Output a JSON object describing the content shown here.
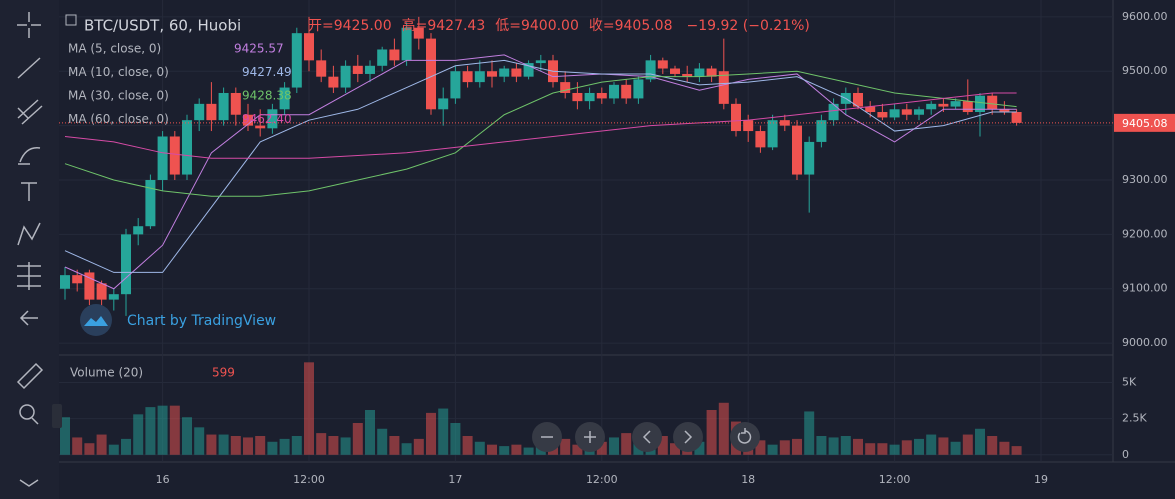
{
  "chart_data": {
    "type": "candlestick",
    "title": "BTC/USDT, 60, Huobi",
    "ohlc_labels": [
      "开=9425.00",
      "高=9427.43",
      "低=9400.00",
      "收=9405.08"
    ],
    "change": "−19.92 (−0.21%)",
    "watermark": "Chart by TradingView",
    "up_color": "#26a69a",
    "down_color": "#ef5350",
    "open": [
      9100,
      9125,
      9130,
      9110,
      9080,
      9090,
      9200,
      9215,
      9300,
      9380,
      9310,
      9410,
      9440,
      9410,
      9460,
      9420,
      9400,
      9395,
      9430,
      9470,
      9570,
      9520,
      9490,
      9470,
      9510,
      9495,
      9510,
      9540,
      9520,
      9580,
      9560,
      9430,
      9450,
      9500,
      9480,
      9500,
      9490,
      9505,
      9490,
      9515,
      9520,
      9480,
      9460,
      9445,
      9460,
      9450,
      9475,
      9450,
      9485,
      9520,
      9505,
      9495,
      9490,
      9505,
      9500,
      9440,
      9410,
      9390,
      9360,
      9410,
      9400,
      9310,
      9370,
      9410,
      9440,
      9460,
      9435,
      9425,
      9415,
      9430,
      9420,
      9430,
      9440,
      9435,
      9445,
      9425,
      9455,
      9430,
      9425
    ],
    "high": [
      9140,
      9135,
      9135,
      9115,
      9100,
      9210,
      9230,
      9310,
      9390,
      9390,
      9420,
      9450,
      9480,
      9470,
      9470,
      9440,
      9430,
      9440,
      9480,
      9580,
      9600,
      9540,
      9510,
      9520,
      9530,
      9520,
      9545,
      9560,
      9590,
      9600,
      9570,
      9470,
      9510,
      9510,
      9520,
      9520,
      9510,
      9515,
      9520,
      9530,
      9530,
      9500,
      9480,
      9470,
      9470,
      9480,
      9485,
      9490,
      9530,
      9525,
      9510,
      9510,
      9515,
      9510,
      9560,
      9450,
      9420,
      9400,
      9420,
      9420,
      9410,
      9380,
      9420,
      9450,
      9470,
      9470,
      9445,
      9440,
      9440,
      9440,
      9435,
      9445,
      9450,
      9450,
      9485,
      9460,
      9460,
      9445,
      9430
    ],
    "low": [
      9080,
      9095,
      9070,
      9065,
      9060,
      9050,
      9180,
      9210,
      9280,
      9300,
      9300,
      9390,
      9390,
      9400,
      9400,
      9390,
      9380,
      9385,
      9420,
      9460,
      9500,
      9480,
      9460,
      9460,
      9480,
      9480,
      9500,
      9510,
      9510,
      9540,
      9420,
      9400,
      9440,
      9470,
      9470,
      9470,
      9480,
      9480,
      9485,
      9500,
      9470,
      9450,
      9430,
      9430,
      9440,
      9440,
      9440,
      9440,
      9480,
      9495,
      9490,
      9480,
      9480,
      9480,
      9430,
      9380,
      9370,
      9350,
      9355,
      9390,
      9300,
      9240,
      9360,
      9400,
      9420,
      9430,
      9415,
      9410,
      9410,
      9410,
      9410,
      9420,
      9425,
      9430,
      9420,
      9380,
      9420,
      9420,
      9400
    ],
    "close": [
      9125,
      9110,
      9080,
      9080,
      9090,
      9200,
      9215,
      9300,
      9380,
      9310,
      9410,
      9440,
      9410,
      9460,
      9420,
      9400,
      9395,
      9430,
      9470,
      9570,
      9520,
      9490,
      9470,
      9510,
      9495,
      9510,
      9540,
      9520,
      9580,
      9560,
      9430,
      9450,
      9500,
      9480,
      9500,
      9490,
      9505,
      9490,
      9515,
      9520,
      9480,
      9460,
      9445,
      9460,
      9450,
      9475,
      9450,
      9485,
      9520,
      9505,
      9495,
      9490,
      9505,
      9490,
      9440,
      9390,
      9390,
      9360,
      9410,
      9400,
      9310,
      9370,
      9410,
      9440,
      9460,
      9435,
      9425,
      9415,
      9430,
      9420,
      9430,
      9440,
      9435,
      9445,
      9425,
      9455,
      9430,
      9425,
      9405
    ],
    "ylim": [
      8980,
      9631
    ],
    "yticks": [
      {
        "value": 9000,
        "label": "9000.00"
      },
      {
        "value": 9100,
        "label": "9100.00"
      },
      {
        "value": 9200,
        "label": "9200.00"
      },
      {
        "value": 9300,
        "label": "9300.00"
      },
      {
        "value": 9400,
        "label": "9400.00"
      },
      {
        "value": 9500,
        "label": "9500.00"
      },
      {
        "value": 9600,
        "label": "9600.00"
      }
    ],
    "last_price": 9405.08,
    "xticks": [
      {
        "value": 8,
        "label": "16"
      },
      {
        "value": 20,
        "label": "12:00"
      },
      {
        "value": 32,
        "label": "17"
      },
      {
        "value": 44,
        "label": "12:00"
      },
      {
        "value": 56,
        "label": "18"
      },
      {
        "value": 68,
        "label": "12:00"
      },
      {
        "value": 80,
        "label": "19"
      }
    ],
    "ma": [
      {
        "name": "MA (5, close, 0)",
        "last": "9425.57",
        "color": "#c27fe0",
        "x": [
          0,
          4,
          8,
          12,
          16,
          20,
          24,
          28,
          32,
          36,
          40,
          44,
          48,
          52,
          56,
          60,
          64,
          68,
          72,
          76,
          78
        ],
        "values": [
          9140,
          9100,
          9180,
          9350,
          9420,
          9420,
          9470,
          9520,
          9520,
          9530,
          9490,
          9495,
          9490,
          9465,
          9485,
          9495,
          9420,
          9370,
          9430,
          9430,
          9430
        ]
      },
      {
        "name": "MA (10, close, 0)",
        "last": "9427.49",
        "color": "#9fb8e8",
        "x": [
          0,
          4,
          8,
          12,
          16,
          20,
          24,
          28,
          32,
          36,
          40,
          44,
          48,
          52,
          56,
          60,
          64,
          68,
          72,
          76,
          78
        ],
        "values": [
          9170,
          9130,
          9130,
          9250,
          9370,
          9410,
          9430,
          9470,
          9510,
          9520,
          9500,
          9495,
          9495,
          9475,
          9480,
          9490,
          9450,
          9390,
          9400,
          9425,
          9425
        ]
      },
      {
        "name": "MA (30, close, 0)",
        "last": "9428.38",
        "color": "#6fc36a",
        "x": [
          0,
          4,
          8,
          12,
          16,
          20,
          24,
          28,
          32,
          36,
          40,
          44,
          48,
          52,
          56,
          60,
          64,
          68,
          72,
          76,
          78
        ],
        "values": [
          9330,
          9300,
          9280,
          9270,
          9270,
          9280,
          9300,
          9320,
          9350,
          9420,
          9460,
          9480,
          9490,
          9490,
          9495,
          9500,
          9480,
          9460,
          9450,
          9440,
          9435
        ]
      },
      {
        "name": "MA (60, close, 0)",
        "last": "9462.40",
        "color": "#d64ba6",
        "x": [
          0,
          4,
          8,
          12,
          16,
          20,
          24,
          28,
          32,
          36,
          40,
          44,
          48,
          52,
          56,
          60,
          64,
          68,
          72,
          76,
          78
        ],
        "values": [
          9380,
          9370,
          9350,
          9340,
          9340,
          9340,
          9345,
          9350,
          9360,
          9370,
          9380,
          9390,
          9400,
          9405,
          9410,
          9420,
          9430,
          9440,
          9450,
          9460,
          9460
        ]
      }
    ],
    "volume": {
      "name": "Volume (20)",
      "ylim": [
        -500,
        6700
      ],
      "yticks": [
        0,
        {
          "value": 2500,
          "label": "2.5K"
        },
        {
          "value": 5000,
          "label": "5K"
        }
      ],
      "values": [
        2600,
        1200,
        800,
        1400,
        700,
        1100,
        2800,
        3300,
        3400,
        3400,
        2600,
        1900,
        1400,
        1400,
        1300,
        1200,
        1300,
        900,
        1100,
        1300,
        6400,
        1500,
        1300,
        1200,
        2200,
        3100,
        1800,
        1300,
        800,
        1100,
        2900,
        3200,
        2200,
        1300,
        900,
        700,
        600,
        700,
        500,
        600,
        1200,
        1100,
        700,
        600,
        900,
        1200,
        1500,
        1400,
        1600,
        1300,
        800,
        700,
        900,
        3100,
        3600,
        2300,
        1400,
        1000,
        700,
        1000,
        1100,
        3000,
        1300,
        1200,
        1300,
        1100,
        800,
        800,
        700,
        1000,
        1100,
        1400,
        1200,
        900,
        1400,
        1800,
        1300,
        900,
        599
      ]
    }
  }
}
